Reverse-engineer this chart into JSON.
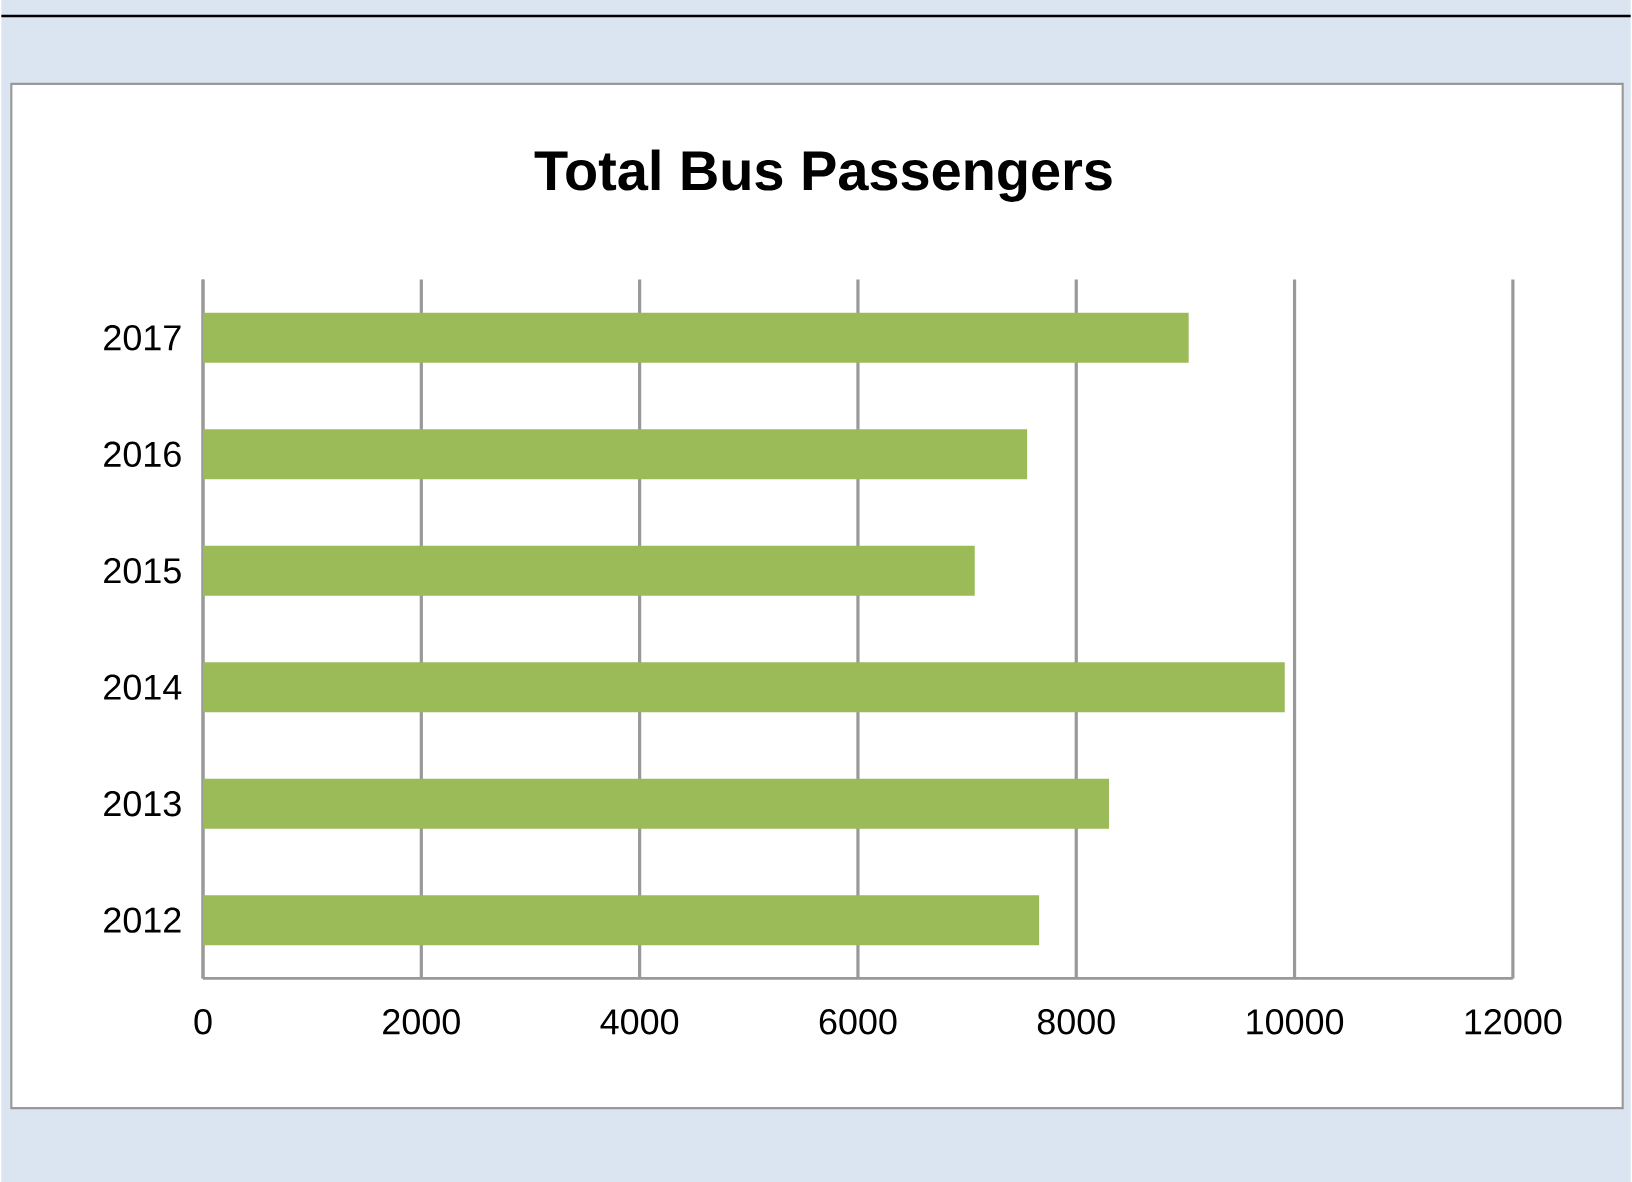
{
  "chart_data": {
    "type": "bar",
    "orientation": "horizontal",
    "title": "Total Bus Passengers",
    "categories": [
      "2017",
      "2016",
      "2015",
      "2014",
      "2013",
      "2012"
    ],
    "values": [
      9030,
      7550,
      7070,
      9910,
      8300,
      7660
    ],
    "color": "#9bbb59",
    "xlim": [
      0,
      12000
    ],
    "xticks": [
      0,
      2000,
      4000,
      6000,
      8000,
      10000,
      12000
    ],
    "grid": "x"
  }
}
